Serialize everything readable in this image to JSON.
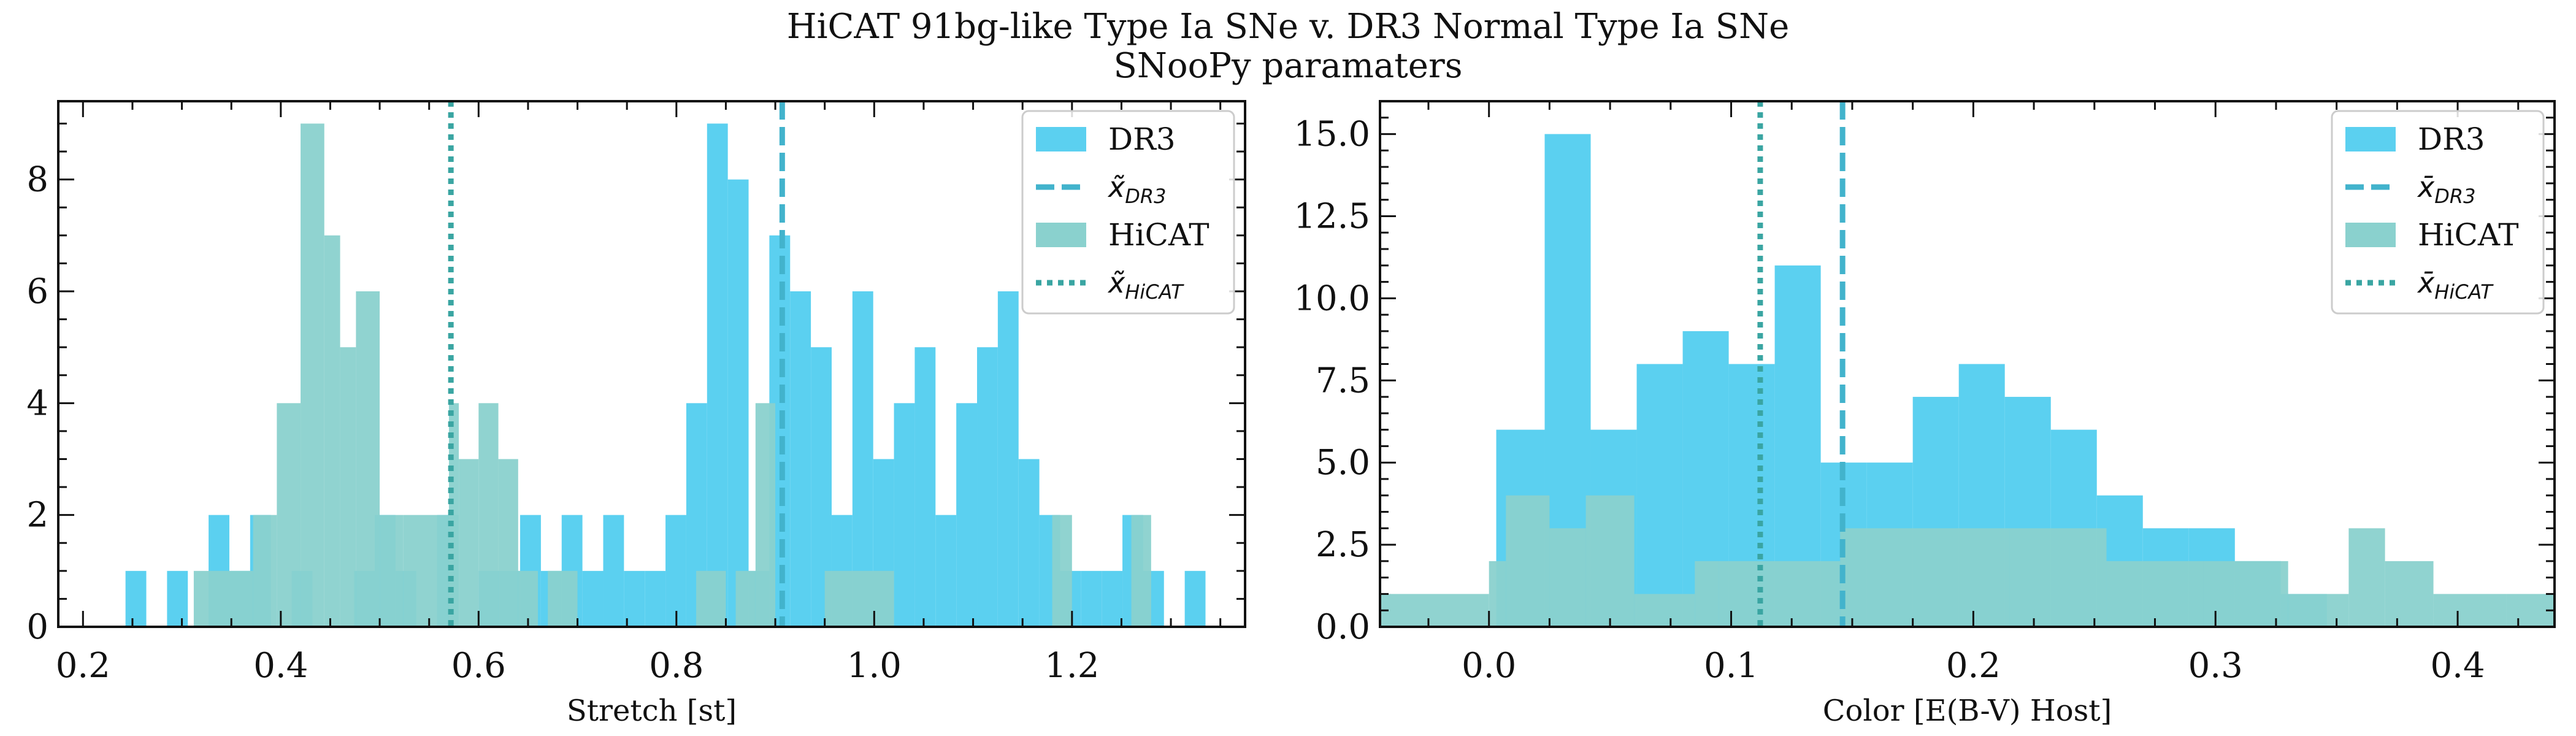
{
  "title": {
    "line1": "HiCAT 91bg-like Type Ia SNe v. DR3 Normal Type Ia SNe",
    "line2": "SNooPy paramaters"
  },
  "colors": {
    "dr3": "#5bd0f0",
    "dr3_line": "#42b3cc",
    "hicat": "#8ad1ce",
    "hicat_line": "#3aa5a2",
    "axis": "#111111"
  },
  "chart_data": [
    {
      "type": "histogram",
      "xlabel": "Stretch [st]",
      "ylabel": "",
      "xlim": [
        0.175,
        1.375
      ],
      "ylim": [
        0,
        9.4
      ],
      "xticks": [
        0.2,
        0.4,
        0.6,
        0.8,
        1.0,
        1.2
      ],
      "xtick_labels": [
        "0.2",
        "0.4",
        "0.6",
        "0.8",
        "1.0",
        "1.2"
      ],
      "yticks": [
        0,
        2,
        4,
        6,
        8
      ],
      "ytick_labels": [
        "0",
        "2",
        "4",
        "6",
        "8"
      ],
      "legend_position": "top-right",
      "legend": [
        {
          "label": "DR3",
          "kind": "patch",
          "series": "dr3"
        },
        {
          "label": "x̃",
          "sub": "DR3",
          "kind": "dashed",
          "series": "dr3"
        },
        {
          "label": "HiCAT",
          "kind": "patch",
          "series": "hicat"
        },
        {
          "label": "x̃",
          "sub": "HiCAT",
          "kind": "dotted",
          "series": "hicat"
        }
      ],
      "series": [
        {
          "name": "DR3",
          "bins": [
            [
              0.243,
              0.264,
              1
            ],
            [
              0.285,
              0.306,
              1
            ],
            [
              0.327,
              0.348,
              2
            ],
            [
              0.348,
              0.369,
              1
            ],
            [
              0.369,
              0.39,
              2
            ],
            [
              0.411,
              0.432,
              1
            ],
            [
              0.474,
              0.495,
              1
            ],
            [
              0.495,
              0.516,
              2
            ],
            [
              0.516,
              0.537,
              1
            ],
            [
              0.558,
              0.579,
              2
            ],
            [
              0.6,
              0.621,
              1
            ],
            [
              0.621,
              0.642,
              1
            ],
            [
              0.642,
              0.663,
              2
            ],
            [
              0.663,
              0.684,
              1
            ],
            [
              0.684,
              0.705,
              2
            ],
            [
              0.705,
              0.726,
              1
            ],
            [
              0.726,
              0.747,
              2
            ],
            [
              0.747,
              0.768,
              1
            ],
            [
              0.768,
              0.789,
              1
            ],
            [
              0.789,
              0.81,
              2
            ],
            [
              0.81,
              0.831,
              4
            ],
            [
              0.831,
              0.852,
              9
            ],
            [
              0.852,
              0.873,
              8
            ],
            [
              0.873,
              0.894,
              1
            ],
            [
              0.894,
              0.915,
              7
            ],
            [
              0.915,
              0.936,
              6
            ],
            [
              0.936,
              0.957,
              5
            ],
            [
              0.957,
              0.978,
              2
            ],
            [
              0.978,
              0.999,
              6
            ],
            [
              0.999,
              1.02,
              3
            ],
            [
              1.02,
              1.041,
              4
            ],
            [
              1.041,
              1.062,
              5
            ],
            [
              1.062,
              1.083,
              2
            ],
            [
              1.083,
              1.104,
              4
            ],
            [
              1.104,
              1.125,
              5
            ],
            [
              1.125,
              1.146,
              6
            ],
            [
              1.146,
              1.167,
              3
            ],
            [
              1.167,
              1.188,
              2
            ],
            [
              1.188,
              1.209,
              1
            ],
            [
              1.209,
              1.23,
              1
            ],
            [
              1.23,
              1.251,
              1
            ],
            [
              1.251,
              1.272,
              2
            ],
            [
              1.272,
              1.293,
              1
            ],
            [
              1.314,
              1.335,
              1
            ]
          ],
          "median": 0.907
        },
        {
          "name": "HiCAT",
          "bins": [
            [
              0.312,
              0.372,
              1
            ],
            [
              0.372,
              0.396,
              2
            ],
            [
              0.396,
              0.42,
              4
            ],
            [
              0.42,
              0.444,
              9
            ],
            [
              0.444,
              0.46,
              7
            ],
            [
              0.46,
              0.476,
              5
            ],
            [
              0.476,
              0.5,
              6
            ],
            [
              0.5,
              0.524,
              2
            ],
            [
              0.524,
              0.58,
              2
            ],
            [
              0.57,
              0.58,
              4
            ],
            [
              0.58,
              0.6,
              3
            ],
            [
              0.6,
              0.62,
              4
            ],
            [
              0.62,
              0.64,
              3
            ],
            [
              0.64,
              0.66,
              1
            ],
            [
              0.67,
              0.7,
              1
            ],
            [
              0.82,
              0.85,
              1
            ],
            [
              0.86,
              0.88,
              1
            ],
            [
              0.88,
              0.9,
              4
            ],
            [
              0.95,
              1.02,
              1
            ],
            [
              1.18,
              1.2,
              2
            ],
            [
              1.26,
              1.28,
              2
            ]
          ],
          "median": 0.572
        }
      ]
    },
    {
      "type": "histogram",
      "xlabel": "Color [E(B-V) Host]",
      "ylabel": "",
      "xlim": [
        -0.045,
        0.44
      ],
      "ylim": [
        0,
        16.0
      ],
      "xticks": [
        0.0,
        0.1,
        0.2,
        0.3,
        0.4
      ],
      "xtick_labels": [
        "0.0",
        "0.1",
        "0.2",
        "0.3",
        "0.4"
      ],
      "yticks": [
        0.0,
        2.5,
        5.0,
        7.5,
        10.0,
        12.5,
        15.0
      ],
      "ytick_labels": [
        "0.0",
        "2.5",
        "5.0",
        "7.5",
        "10.0",
        "12.5",
        "15.0"
      ],
      "legend_position": "top-right",
      "legend": [
        {
          "label": "DR3",
          "kind": "patch",
          "series": "dr3"
        },
        {
          "label": "x̄",
          "sub": "DR3",
          "kind": "dashed",
          "series": "dr3"
        },
        {
          "label": "HiCAT",
          "kind": "patch",
          "series": "hicat"
        },
        {
          "label": "x̄",
          "sub": "HiCAT",
          "kind": "dotted",
          "series": "hicat"
        }
      ],
      "series": [
        {
          "name": "DR3",
          "bins": [
            [
              0.003,
              0.023,
              6
            ],
            [
              0.023,
              0.042,
              15
            ],
            [
              0.042,
              0.061,
              6
            ],
            [
              0.061,
              0.08,
              8
            ],
            [
              0.08,
              0.099,
              9
            ],
            [
              0.099,
              0.118,
              8
            ],
            [
              0.118,
              0.137,
              11
            ],
            [
              0.137,
              0.156,
              5
            ],
            [
              0.156,
              0.175,
              5
            ],
            [
              0.175,
              0.194,
              7
            ],
            [
              0.194,
              0.213,
              8
            ],
            [
              0.213,
              0.232,
              7
            ],
            [
              0.232,
              0.251,
              6
            ],
            [
              0.251,
              0.27,
              4
            ],
            [
              0.27,
              0.289,
              3
            ],
            [
              0.289,
              0.308,
              3
            ],
            [
              0.308,
              0.327,
              2
            ],
            [
              0.327,
              0.346,
              1
            ]
          ],
          "median": 0.146
        },
        {
          "name": "HiCAT",
          "bins": [
            [
              -0.045,
              0.0,
              1
            ],
            [
              0.0,
              0.007,
              2
            ],
            [
              0.007,
              0.025,
              4
            ],
            [
              0.025,
              0.04,
              3
            ],
            [
              0.04,
              0.06,
              4
            ],
            [
              0.06,
              0.085,
              1
            ],
            [
              0.085,
              0.095,
              2
            ],
            [
              0.095,
              0.145,
              2
            ],
            [
              0.145,
              0.215,
              3
            ],
            [
              0.215,
              0.255,
              3
            ],
            [
              0.255,
              0.295,
              2
            ],
            [
              0.295,
              0.33,
              2
            ],
            [
              0.33,
              0.355,
              1
            ],
            [
              0.355,
              0.37,
              3
            ],
            [
              0.37,
              0.39,
              2
            ],
            [
              0.39,
              0.42,
              1
            ],
            [
              0.42,
              0.44,
              1
            ]
          ],
          "median": 0.112
        }
      ]
    }
  ]
}
